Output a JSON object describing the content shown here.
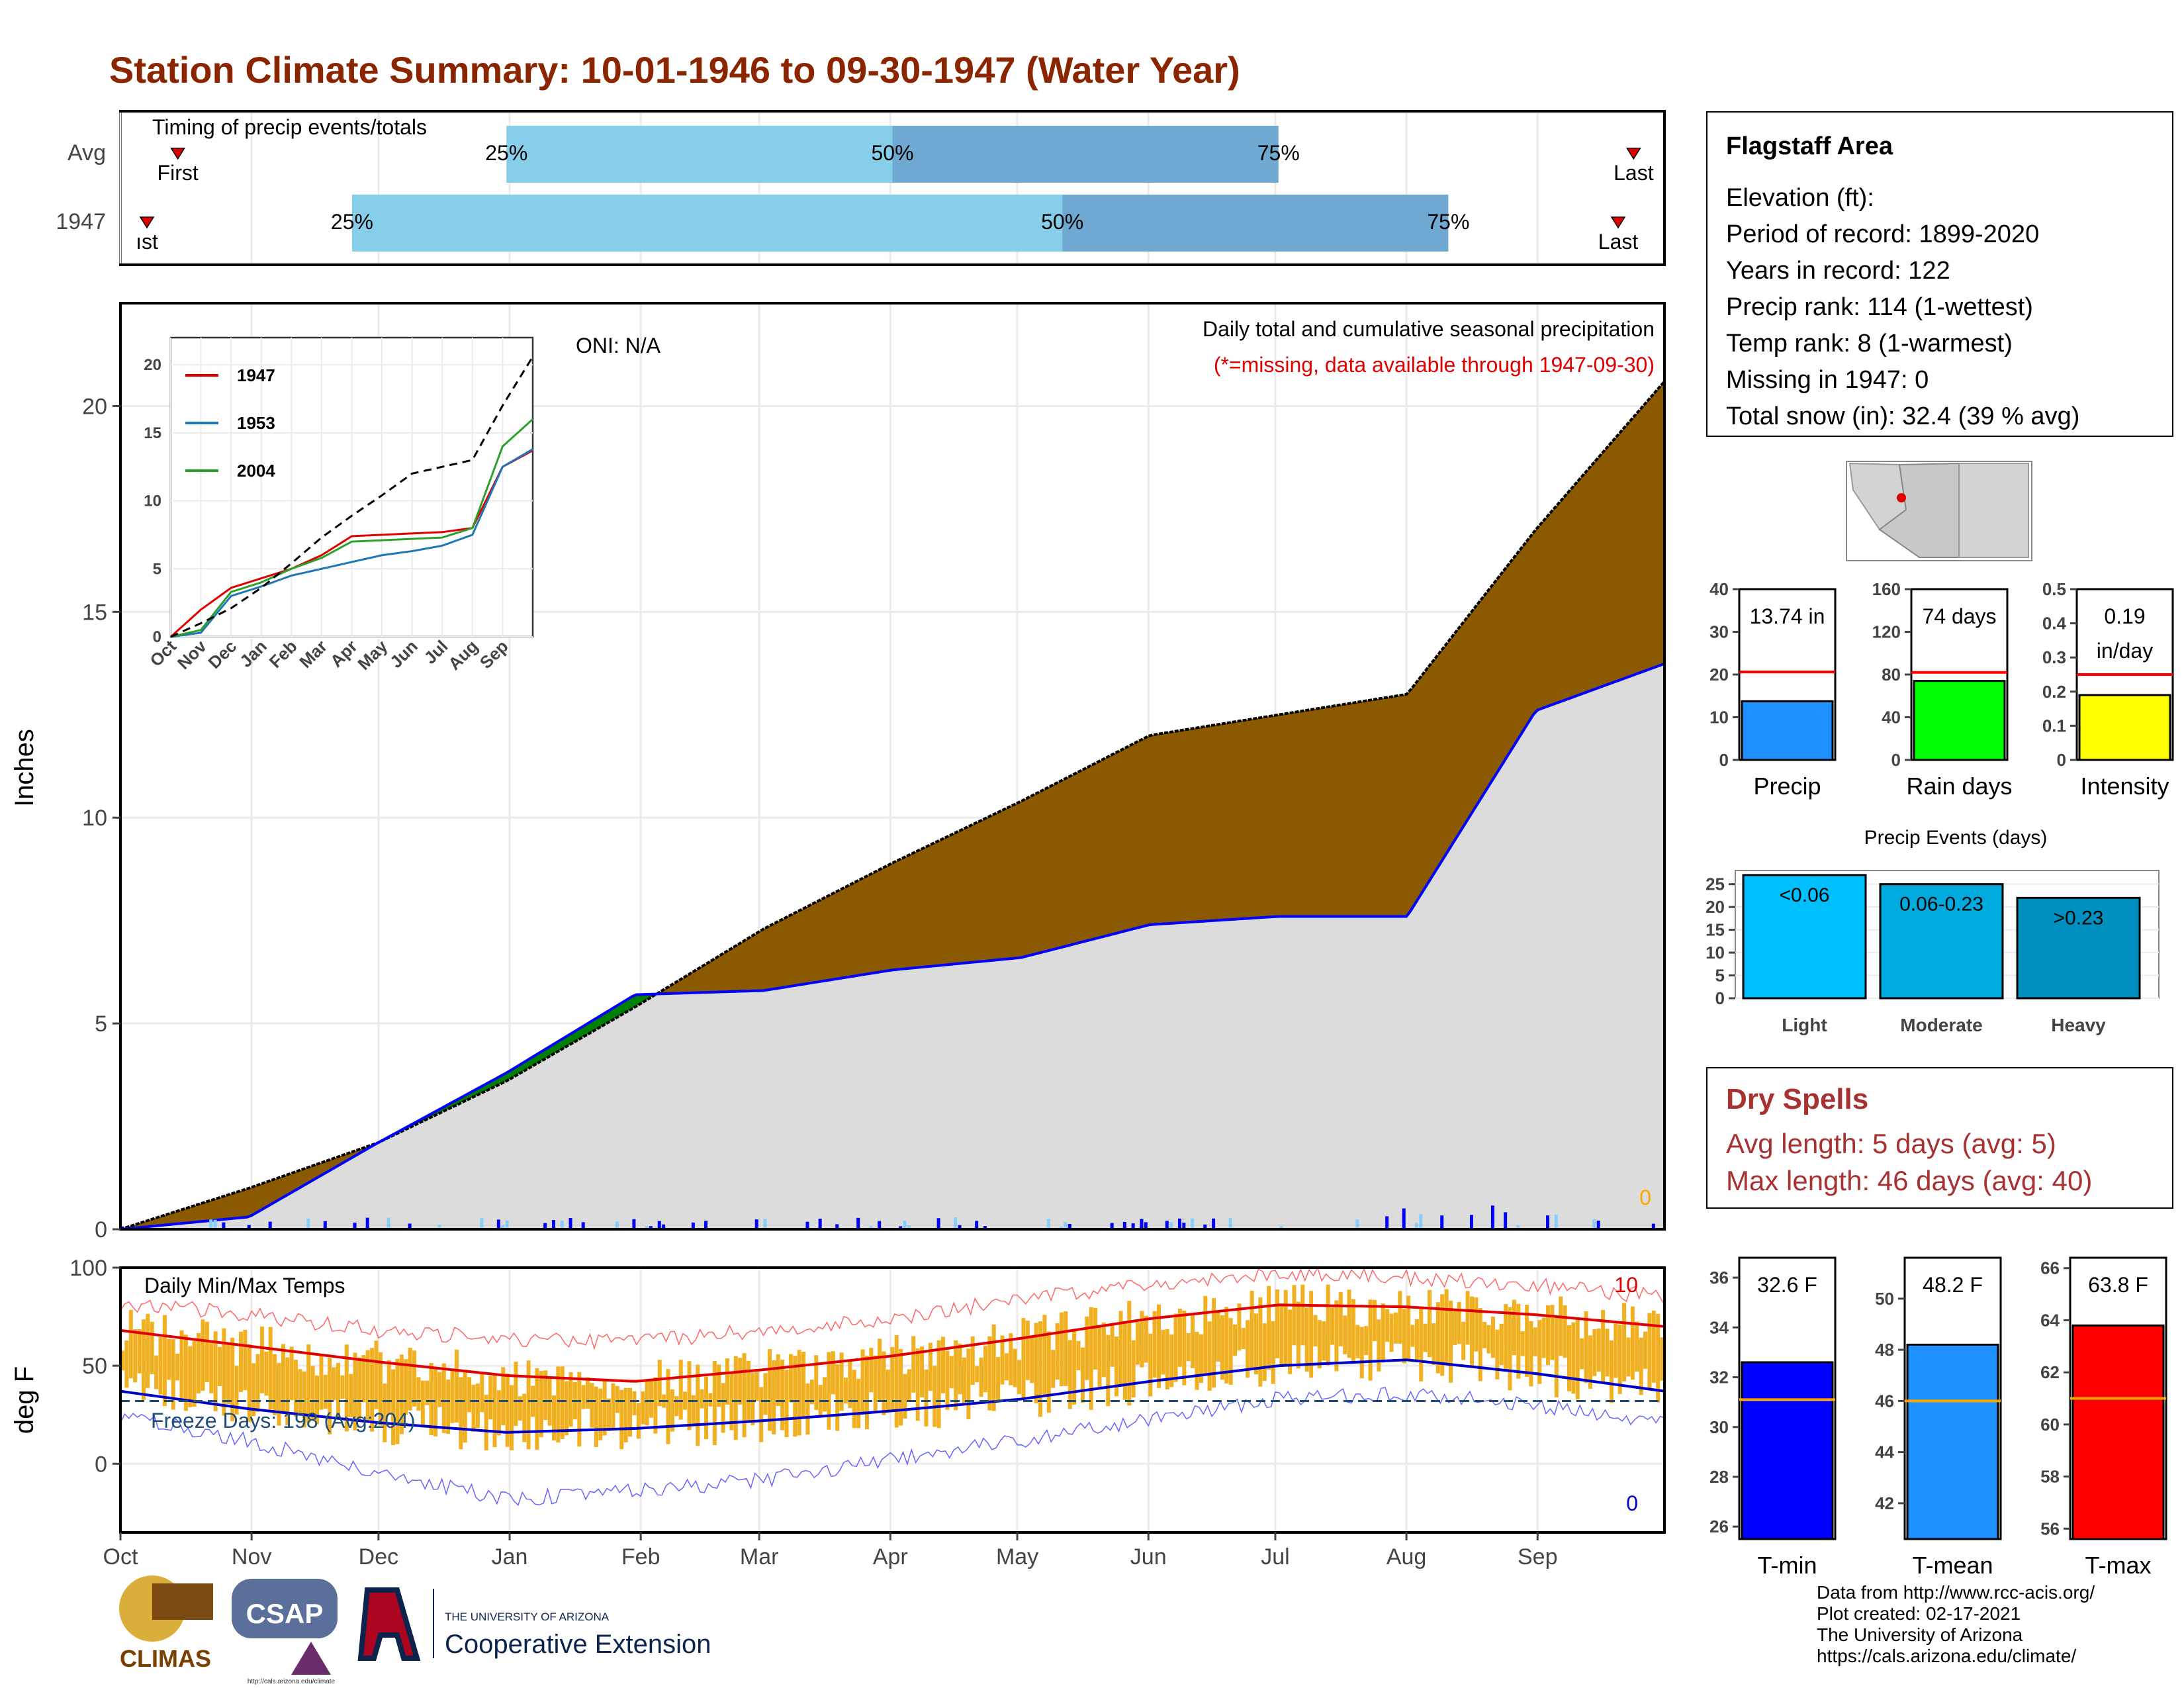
{
  "title": "Station Climate Summary: 10-01-1946 to 09-30-1947 (Water Year)",
  "colors": {
    "title": "#8b2500",
    "cum_fill": "#8b5a00",
    "above_avg": "#008000",
    "below_fill": "#dcdcdc",
    "line_blue": "#0000ff",
    "timing_light": "#87ceeb",
    "timing_dark": "#6fa8d0",
    "temp_bar": "#f0b020",
    "dry_spells": "#a83232"
  },
  "timing": {
    "label": "Timing of precip events/totals",
    "rows": [
      {
        "name": "Avg",
        "first": 0.02,
        "q25": 0.25,
        "q50": 0.5,
        "q75": 0.75,
        "last": 0.98,
        "first_label": "First",
        "last_label": "Last",
        "q25_label": "25%",
        "q50_label": "50%",
        "q75_label": "75%"
      },
      {
        "name": "1947",
        "first": 0.0,
        "q25": 0.15,
        "q50": 0.61,
        "q75": 0.86,
        "last": 0.97,
        "first_label": "ıst",
        "last_label": "Last",
        "q25_label": "25%",
        "q50_label": "50%",
        "q75_label": "75%"
      }
    ]
  },
  "main": {
    "ylabel": "Inches",
    "oni": "ONI: N/A",
    "note1": "Daily total and cumulative seasonal precipitation",
    "note2": "(*=missing, data available through 1947-09-30)",
    "zero": "0",
    "yticks": [
      "0",
      "5",
      "10",
      "15",
      "20"
    ],
    "ymax": 22.5
  },
  "inset": {
    "yticks": [
      "0",
      "5",
      "10",
      "15",
      "20"
    ],
    "months": [
      "Oct",
      "Nov",
      "Dec",
      "Jan",
      "Feb",
      "Mar",
      "Apr",
      "May",
      "Jun",
      "Jul",
      "Aug",
      "Sep"
    ],
    "legend": [
      "1947",
      "1953",
      "2004"
    ]
  },
  "temps": {
    "ylabel": "deg F",
    "label": "Daily Min/Max Temps",
    "freeze": "Freeze Days: 198 (Avg:204)",
    "count_hot": "10",
    "count_cold": "0",
    "yticks": [
      "0",
      "50",
      "100"
    ]
  },
  "months": [
    "Oct",
    "Nov",
    "Dec",
    "Jan",
    "Feb",
    "Mar",
    "Apr",
    "May",
    "Jun",
    "Jul",
    "Aug",
    "Sep"
  ],
  "info": {
    "title": "Flagstaff Area",
    "lines": [
      "Elevation (ft):",
      "Period of record: 1899-2020",
      "Years in record: 122",
      "Precip rank: 114 (1-wettest)",
      "Temp rank: 8 (1-warmest)",
      "Missing in 1947: 0",
      "Total snow (in): 32.4 (39 % avg)"
    ]
  },
  "dry": {
    "title": "Dry Spells",
    "avg": "Avg length: 5 days (avg: 5)",
    "max": "Max length: 46 days (avg: 40)"
  },
  "events_title": "Precip Events (days)",
  "credits": [
    "Data from http://www.rcc-acis.org/",
    "Plot created: 02-17-2021",
    "The University of Arizona",
    "https://cals.arizona.edu/climate/"
  ],
  "logos": {
    "climas": "CLIMAS",
    "csap": "CSAP",
    "csap_url": "http://cals.arizona.edu/climate",
    "ua_small": "THE UNIVERSITY OF ARIZONA",
    "ua_big": "Cooperative Extension"
  },
  "chart_data": [
    {
      "type": "area",
      "title": "Daily total and cumulative seasonal precipitation",
      "ylabel": "Inches",
      "ylim": [
        0,
        22.5
      ],
      "x": [
        "Oct",
        "Nov",
        "Dec",
        "Jan",
        "Feb",
        "Mar",
        "Apr",
        "May",
        "Jun",
        "Jul",
        "Aug",
        "Sep",
        "Sep-end"
      ],
      "series": [
        {
          "values": [
            0,
            1.0,
            2.1,
            3.6,
            5.4,
            7.3,
            8.9,
            10.4,
            12.0,
            12.5,
            13.0,
            17.0,
            20.6
          ]
        },
        {
          "values": [
            0,
            0.3,
            2.1,
            3.8,
            5.7,
            5.8,
            6.3,
            6.6,
            7.4,
            7.6,
            7.6,
            12.6,
            13.74
          ]
        }
      ]
    },
    {
      "type": "line",
      "ylim": [
        0,
        22
      ],
      "x": [
        "Oct",
        "Nov",
        "Dec",
        "Jan",
        "Feb",
        "Mar",
        "Apr",
        "May",
        "Jun",
        "Jul",
        "Aug",
        "Sep",
        "Sep-end"
      ],
      "series": [
        {
          "name": "1947",
          "values": [
            0,
            2.0,
            3.6,
            4.3,
            5.0,
            6.0,
            7.4,
            7.5,
            7.6,
            7.7,
            8.0,
            12.5,
            13.7
          ]
        },
        {
          "name": "1953",
          "values": [
            0,
            0.3,
            3.0,
            3.7,
            4.5,
            5.0,
            5.5,
            6.0,
            6.3,
            6.7,
            7.5,
            12.5,
            13.8
          ]
        },
        {
          "name": "2004",
          "values": [
            0,
            0.5,
            3.3,
            4.0,
            5.0,
            5.8,
            7.0,
            7.1,
            7.2,
            7.3,
            8.0,
            14.0,
            16.0
          ]
        },
        {
          "values": [
            0,
            1.0,
            2.1,
            3.6,
            5.4,
            7.3,
            8.9,
            10.4,
            12.0,
            12.5,
            13.0,
            17.0,
            20.6
          ]
        }
      ]
    },
    {
      "type": "line",
      "ylabel": "deg F",
      "ylim": [
        -35,
        100
      ],
      "x": [
        "Oct",
        "Nov",
        "Dec",
        "Jan",
        "Feb",
        "Mar",
        "Apr",
        "May",
        "Jun",
        "Jul",
        "Aug",
        "Sep",
        "Sep-end"
      ],
      "series": [
        {
          "values": [
            68,
            60,
            52,
            45,
            42,
            48,
            55,
            64,
            74,
            81,
            80,
            76,
            70
          ]
        },
        {
          "values": [
            37,
            28,
            21,
            16,
            18,
            22,
            27,
            33,
            42,
            50,
            53,
            46,
            37
          ]
        },
        {
          "values": [
            82,
            76,
            68,
            64,
            62,
            68,
            74,
            84,
            91,
            97,
            95,
            91,
            85
          ]
        },
        {
          "values": [
            25,
            12,
            -5,
            -18,
            -14,
            -8,
            2,
            12,
            22,
            33,
            36,
            30,
            20
          ]
        }
      ]
    },
    {
      "type": "bar",
      "categories": [
        "Precip"
      ],
      "values": [
        13.74
      ],
      "ylim": [
        0,
        40
      ],
      "average": 20.6,
      "value_label": "13.74 in",
      "xlabel": "Precip"
    },
    {
      "type": "bar",
      "categories": [
        "Rain days"
      ],
      "values": [
        74
      ],
      "ylim": [
        0,
        160
      ],
      "average": 82,
      "value_label": "74 days",
      "xlabel": "Rain days"
    },
    {
      "type": "bar",
      "categories": [
        "Intensity"
      ],
      "values": [
        0.19
      ],
      "ylim": [
        0,
        0.5
      ],
      "average": 0.25,
      "value_label": "0.19",
      "value_label2": "in/day",
      "xlabel": "Intensity"
    },
    {
      "type": "bar",
      "title": "Precip Events (days)",
      "categories": [
        "Light",
        "Moderate",
        "Heavy"
      ],
      "labels": [
        "<0.06",
        "0.06-0.23",
        ">0.23"
      ],
      "values": [
        27,
        25,
        22
      ],
      "ylim": [
        0,
        28
      ]
    },
    {
      "type": "bar",
      "categories": [
        "T-min"
      ],
      "values": [
        32.6
      ],
      "ylim": [
        25.5,
        36.8
      ],
      "average": 31.1,
      "value_label": "32.6 F",
      "xlabel": "T-min"
    },
    {
      "type": "bar",
      "categories": [
        "T-mean"
      ],
      "values": [
        48.2
      ],
      "ylim": [
        40.6,
        51.6
      ],
      "average": 46.0,
      "value_label": "48.2 F",
      "xlabel": "T-mean"
    },
    {
      "type": "bar",
      "categories": [
        "T-max"
      ],
      "values": [
        63.8
      ],
      "ylim": [
        55.6,
        66.4
      ],
      "average": 61.0,
      "value_label": "63.8 F",
      "xlabel": "T-max"
    }
  ]
}
